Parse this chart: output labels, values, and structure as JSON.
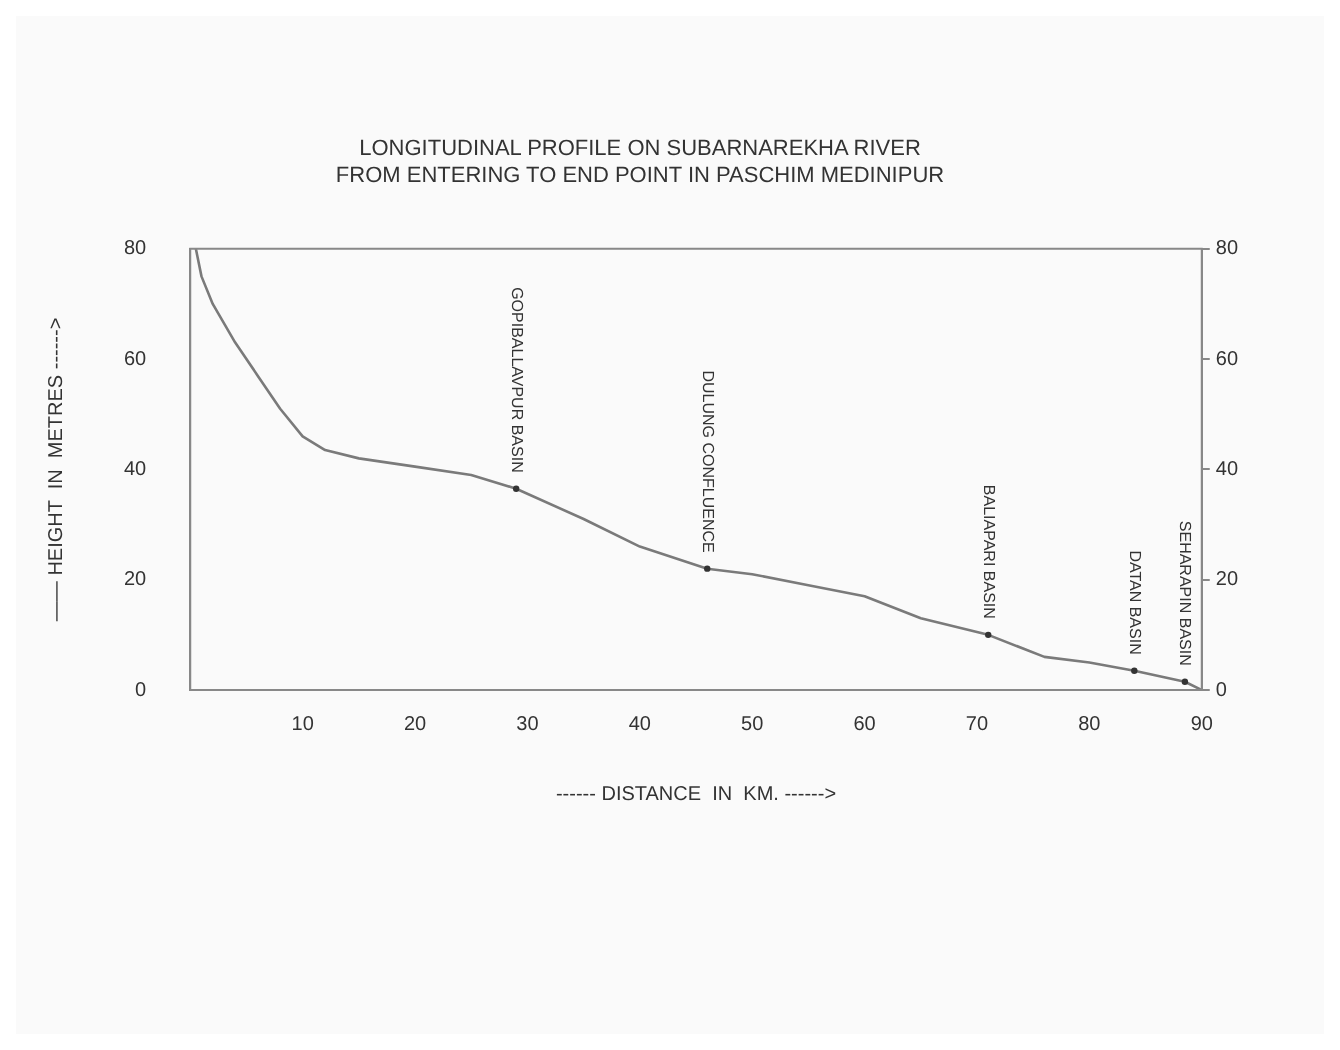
{
  "chart_data": {
    "type": "line",
    "title": "LONGITUDINAL PROFILE ON SUBARNAREKHA RIVER\nFROM ENTERING TO END POINT IN PASCHIM MEDINIPUR",
    "xlabel": "------ DISTANCE  IN  KM. ------>",
    "ylabel": "—— HEIGHT  IN  METRES ------>",
    "x": [
      0.5,
      1,
      2,
      4,
      6,
      8,
      10,
      12,
      15,
      20,
      25,
      29,
      35,
      40,
      46,
      50,
      55,
      60,
      65,
      71,
      76,
      80,
      84,
      88.5,
      90
    ],
    "series": [
      {
        "color": "#7a7a7a",
        "values": [
          80,
          75,
          70,
          63,
          57,
          51,
          46,
          43.5,
          42,
          40.5,
          39,
          36.5,
          31,
          26,
          22,
          21,
          19,
          17,
          13,
          10,
          6,
          5,
          3.5,
          1.5,
          0
        ]
      }
    ],
    "xlim": [
      0,
      90
    ],
    "xticks": [
      10,
      20,
      30,
      40,
      50,
      60,
      70,
      80,
      90
    ],
    "ylim": [
      0,
      80
    ],
    "yticks": [
      0,
      20,
      40,
      60,
      80
    ],
    "y2lim": [
      0,
      80
    ],
    "y2ticks": [
      0,
      20,
      40,
      60,
      80
    ],
    "annotations": [
      {
        "text": "GOPIBALLAVPUR BASIN",
        "x": 29,
        "y": 36.5
      },
      {
        "text": "DULUNG CONFLUENCE",
        "x": 46,
        "y": 22
      },
      {
        "text": "BALIAPARI BASIN",
        "x": 71,
        "y": 10
      },
      {
        "text": "DATAN BASIN",
        "x": 84,
        "y": 3.5
      },
      {
        "text": "SEHARAPIN BASIN",
        "x": 88.5,
        "y": 1.5
      }
    ],
    "grid": false,
    "legend": false,
    "marker": "none",
    "line_style": "solid"
  }
}
